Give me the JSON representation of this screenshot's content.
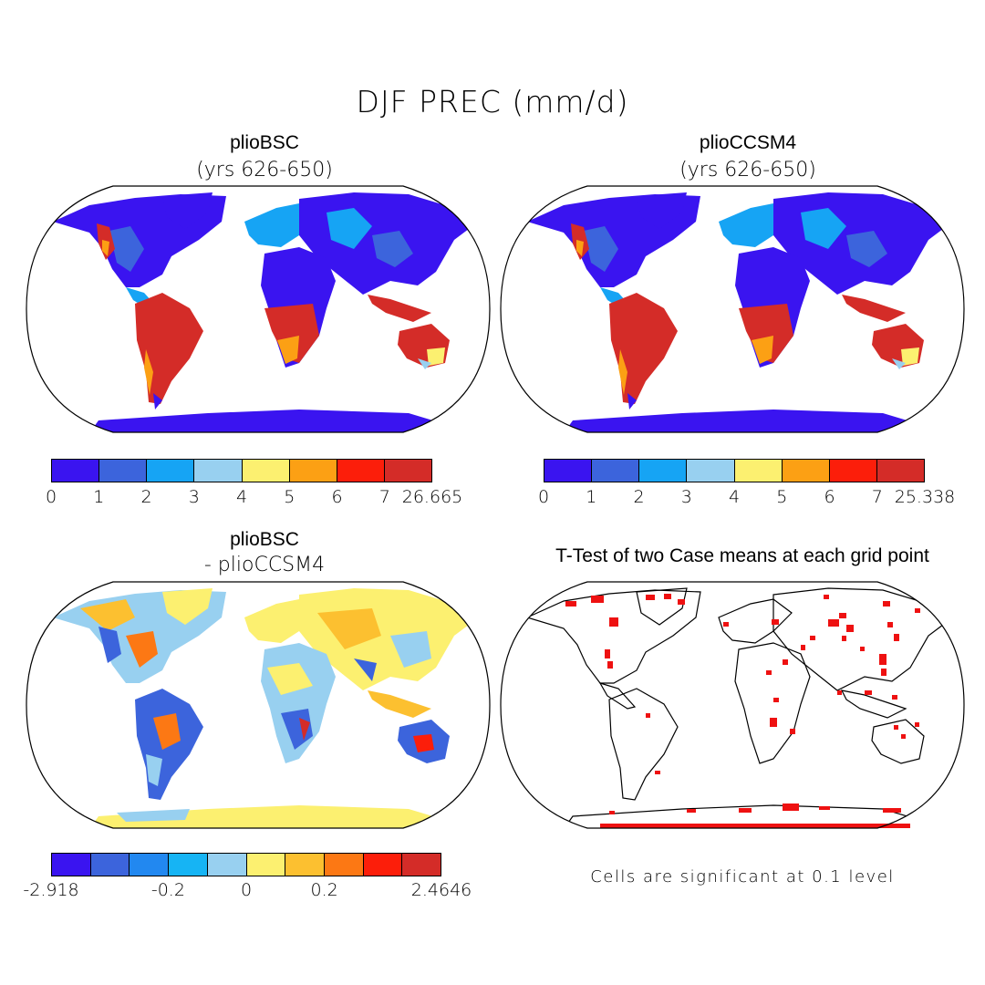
{
  "figure": {
    "title": "DJF PREC (mm/d)"
  },
  "panels": {
    "top_left": {
      "title": "plioBSC",
      "subtitle": "(yrs 626-650)",
      "field": "precipitation"
    },
    "top_right": {
      "title": "plioCCSM4",
      "subtitle": "(yrs 626-650)",
      "field": "precipitation"
    },
    "bottom_left": {
      "title": "plioBSC",
      "subtitle": "- plioCCSM4",
      "field": "difference"
    },
    "bottom_right": {
      "title": "T-Test of two Case means at each grid point",
      "field": "significance"
    }
  },
  "colorbars": {
    "top_left": {
      "colors": [
        "#3a14f0",
        "#3c64dc",
        "#16a4f4",
        "#98d0f0",
        "#fcf070",
        "#fca014",
        "#fc1e0a",
        "#d42c28"
      ],
      "ticks": [
        "0",
        "1",
        "2",
        "3",
        "4",
        "5",
        "6",
        "7",
        "26.665"
      ]
    },
    "top_right": {
      "colors": [
        "#3a14f0",
        "#3c64dc",
        "#16a4f4",
        "#98d0f0",
        "#fcf070",
        "#fca014",
        "#fc1e0a",
        "#d42c28"
      ],
      "ticks": [
        "0",
        "1",
        "2",
        "3",
        "4",
        "5",
        "6",
        "7",
        "25.338"
      ]
    },
    "bottom_left": {
      "colors": [
        "#3a14f0",
        "#3c64dc",
        "#2288f0",
        "#16b4f4",
        "#98d0f0",
        "#fcf070",
        "#fcc030",
        "#fc7814",
        "#fc1e0a",
        "#d42c28"
      ],
      "ticks": [
        "-2.918",
        "-0.2",
        "0",
        "0.2",
        "2.4646"
      ]
    }
  },
  "significance_note": "Cells are significant at 0.1 level",
  "significance_color": "#ee1111",
  "coastline_color": "#000000"
}
